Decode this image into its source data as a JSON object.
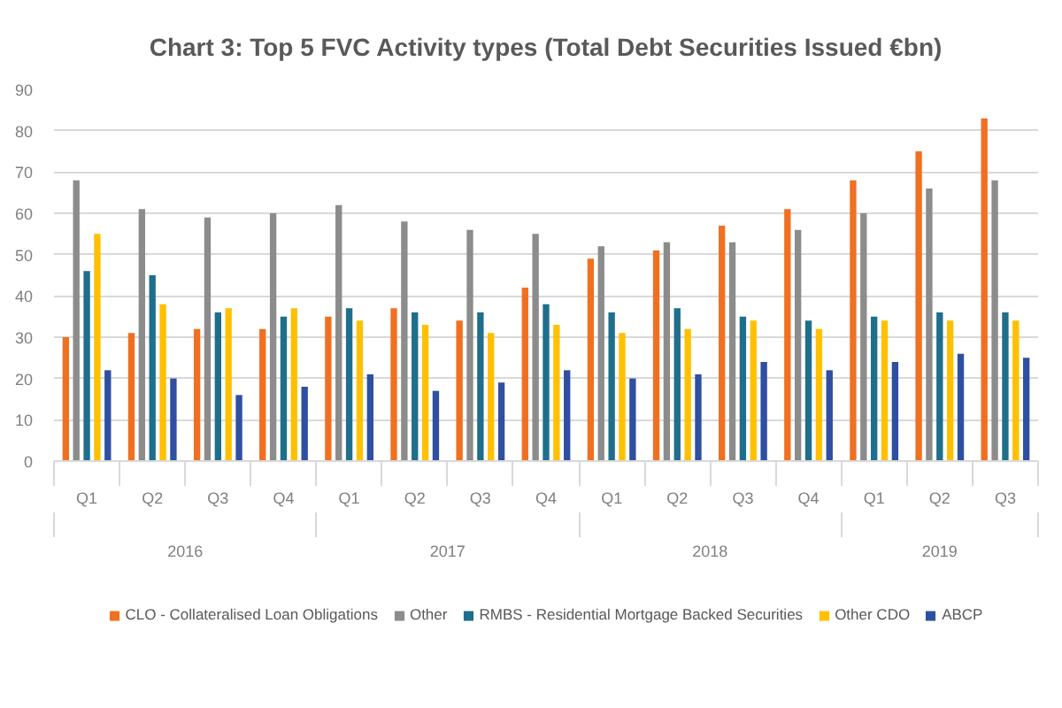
{
  "chart_data": {
    "type": "bar",
    "title": "Chart 3: Top 5 FVC Activity types (Total Debt Securities Issued €bn)",
    "categories": [
      "Q1",
      "Q2",
      "Q3",
      "Q4",
      "Q1",
      "Q2",
      "Q3",
      "Q4",
      "Q1",
      "Q2",
      "Q3",
      "Q4",
      "Q1",
      "Q2",
      "Q3"
    ],
    "annotations": [
      "2016",
      "2017",
      "2018",
      "2019"
    ],
    "series": [
      {
        "name": "CLO - Collateralised Loan Obligations",
        "color": "#f07022",
        "values": [
          30,
          31,
          32,
          32,
          35,
          37,
          34,
          42,
          49,
          51,
          57,
          61,
          68,
          75,
          83
        ]
      },
      {
        "name": "Other",
        "color": "#8c8c8c",
        "values": [
          68,
          61,
          59,
          60,
          62,
          58,
          56,
          55,
          52,
          53,
          53,
          56,
          60,
          66,
          68
        ]
      },
      {
        "name": "RMBS - Residential Mortgage Backed Securities",
        "color": "#1f6e8c",
        "values": [
          46,
          45,
          36,
          35,
          37,
          36,
          36,
          38,
          36,
          37,
          35,
          34,
          35,
          36,
          36
        ]
      },
      {
        "name": "Other CDO",
        "color": "#ffc000",
        "values": [
          55,
          38,
          37,
          37,
          34,
          33,
          31,
          33,
          31,
          32,
          34,
          32,
          34,
          34,
          34
        ]
      },
      {
        "name": "ABCP",
        "color": "#2f4fa2",
        "values": [
          22,
          20,
          16,
          18,
          21,
          17,
          19,
          22,
          20,
          21,
          24,
          22,
          24,
          26,
          25
        ]
      }
    ],
    "ylim": [
      0,
      90
    ],
    "yticks": [
      0,
      10,
      20,
      30,
      40,
      50,
      60,
      70,
      80,
      90
    ],
    "grid": "y",
    "legend": "bottom"
  }
}
